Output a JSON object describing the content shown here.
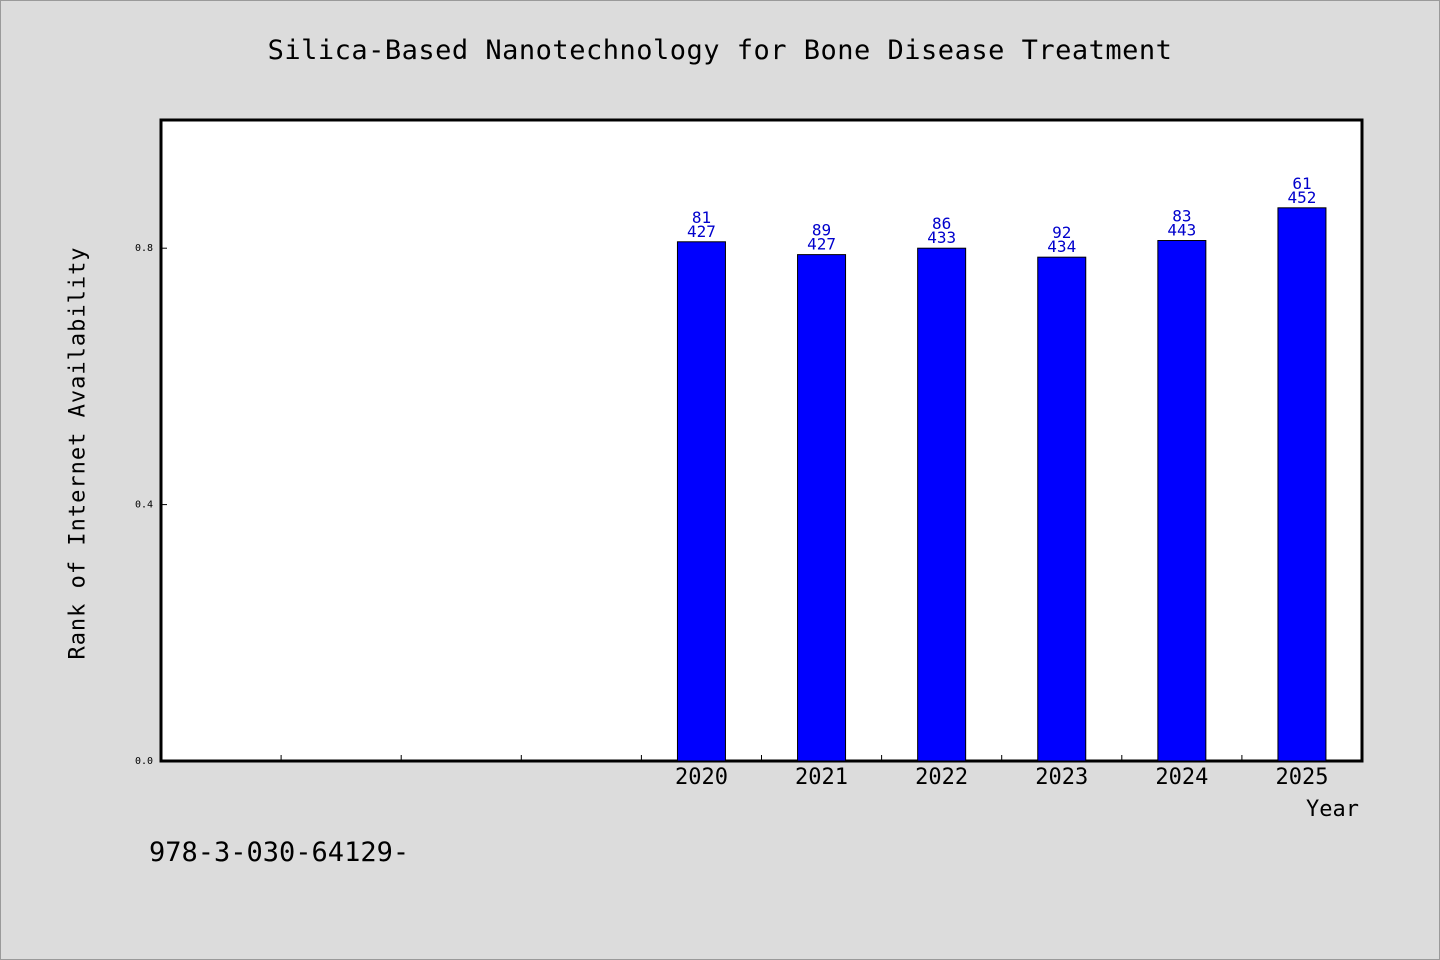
{
  "chart_data": {
    "type": "bar",
    "title": "Silica-Based Nanotechnology for Bone Disease Treatment",
    "xlabel": "Year",
    "ylabel": "Rank of Internet Availability",
    "ylim": [
      0,
      1.0
    ],
    "yticks": [
      "0.0",
      "0.4",
      "0.8"
    ],
    "categories": [
      "",
      "",
      "",
      "",
      "2020",
      "2021",
      "2022",
      "2023",
      "2024",
      "2025"
    ],
    "values": [
      null,
      null,
      null,
      null,
      0.81,
      0.79,
      0.8,
      0.786,
      0.812,
      0.863
    ],
    "labels_top": [
      "",
      "",
      "",
      "",
      "81",
      "89",
      "86",
      "92",
      "83",
      "61"
    ],
    "labels_bottom": [
      "",
      "",
      "",
      "",
      "427",
      "427",
      "433",
      "434",
      "443",
      "452"
    ],
    "bar_color": "#0000ff",
    "label_color": "#0000cc",
    "grid": false,
    "legend": "none"
  },
  "footer": {
    "isbn": "978-3-030-64129-"
  }
}
